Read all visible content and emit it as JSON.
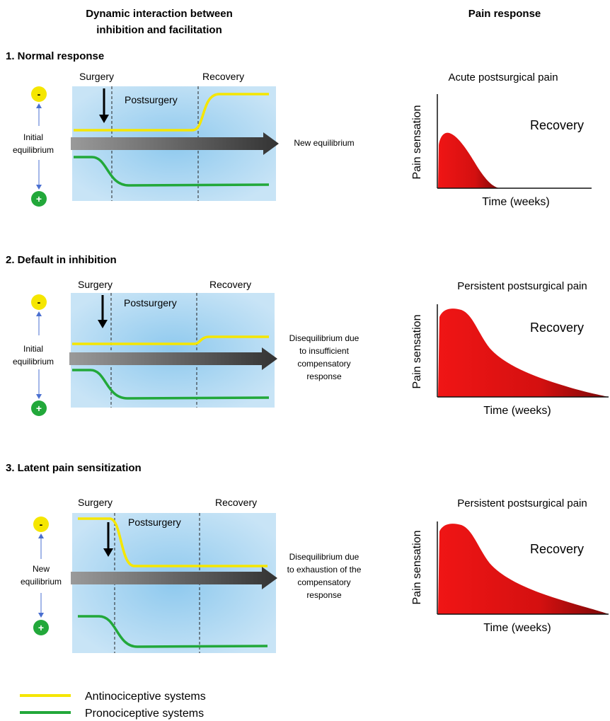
{
  "header": {
    "left_line1": "Dynamic interaction between",
    "left_line2": "inhibition and facilitation",
    "right": "Pain response"
  },
  "panels": [
    {
      "title": "1. Normal response",
      "surgery": "Surgery",
      "postsurgery": "Postsurgery",
      "recovery": "Recovery",
      "minus": "-",
      "plus": "+",
      "left_line1": "Initial",
      "left_line2": "equilibrium",
      "outcome": [
        "New equilibrium"
      ],
      "pain_title": "Acute postsurgical pain",
      "pain_ylabel": "Pain sensation",
      "pain_xlabel": "Time (weeks)",
      "pain_recovery": "Recovery"
    },
    {
      "title": "2. Default in inhibition",
      "surgery": "Surgery",
      "postsurgery": "Postsurgery",
      "recovery": "Recovery",
      "minus": "-",
      "plus": "+",
      "left_line1": "Initial",
      "left_line2": "equilibrium",
      "outcome": [
        "Disequilibrium  due",
        "to insufficient",
        "compensatory",
        "response"
      ],
      "pain_title": "Persistent postsurgical pain",
      "pain_ylabel": "Pain sensation",
      "pain_xlabel": "Time (weeks)",
      "pain_recovery": "Recovery"
    },
    {
      "title": "3. Latent pain sensitization",
      "surgery": "Surgery",
      "postsurgery": "Postsurgery",
      "recovery": "Recovery",
      "minus": "-",
      "plus": "+",
      "left_line1": "New",
      "left_line2": "equilibrium",
      "outcome": [
        "Disequilibrium  due",
        "to exhaustion of the",
        "compensatory",
        "response"
      ],
      "pain_title": "Persistent postsurgical pain",
      "pain_ylabel": "Pain sensation",
      "pain_xlabel": "Time (weeks)",
      "pain_recovery": "Recovery"
    }
  ],
  "legend": [
    {
      "label": "Antinociceptive systems",
      "color": "#f5e600"
    },
    {
      "label": "Pronociceptive systems",
      "color": "#22a83a"
    }
  ],
  "colors": {
    "panel_bg": "#b9dcf2",
    "panel_glow": "#8ec9ee",
    "arrow": "#555555",
    "pain_fill_start": "#f01515",
    "pain_fill_end": "#8a0a0a",
    "minus_circle": "#f5e600",
    "plus_circle": "#22a83a"
  }
}
